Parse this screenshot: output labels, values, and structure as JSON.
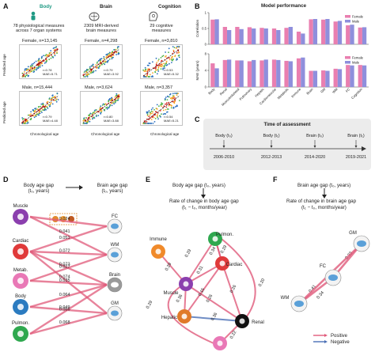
{
  "panels": {
    "A": "A",
    "B": "B",
    "C": "C",
    "D": "D",
    "E": "E",
    "F": "F"
  },
  "panelA": {
    "columns": [
      {
        "title": "Body",
        "desc_line1": "78 physiological measures",
        "desc_line2": "across 7 organ systems",
        "female": "Female, n=13,145",
        "male": "Male, n=15,444",
        "female_stats": {
          "r": "r=0.78",
          "mae": "MAE=5.71"
        },
        "male_stats": {
          "r": "r=0.79",
          "mae": "MAE=4.48"
        }
      },
      {
        "title": "Brain",
        "desc_line1": "2309 MRI-derived",
        "desc_line2": "brain measures",
        "female": "Female, n=4,298",
        "male": "Male, n=3,624",
        "female_stats": {
          "r": "r=0.79",
          "mae": "MAE=3.92"
        },
        "male_stats": {
          "r": "r=0.80",
          "mae": "MAE=3.88"
        }
      },
      {
        "title": "Cognition",
        "desc_line1": "29 cognitive",
        "desc_line2": "measures",
        "female": "Female, n=3,810",
        "male": "Male, n=3,357",
        "female_stats": {
          "r": "r=0.53",
          "mae": "MAE=5.32"
        },
        "male_stats": {
          "r": "r=0.54",
          "mae": "MAE=5.21"
        }
      }
    ],
    "ylabel": "Predicted age",
    "xlabel": "Chronological age"
  },
  "chart_data": [
    {
      "type": "bar",
      "title": "Model performance",
      "ylabel": "Correlation",
      "ylim": [
        0,
        1
      ],
      "categories": [
        "Body",
        "Renal",
        "Musculoskeletal",
        "Pulmonary",
        "Hepatic",
        "Cardiovascular",
        "Metabolic",
        "Immune",
        "Brain",
        "GM",
        "WM",
        "FC",
        "Cognition"
      ],
      "series": [
        {
          "name": "Female",
          "color": "#e97fb0",
          "values": [
            0.78,
            0.55,
            0.55,
            0.54,
            0.52,
            0.5,
            0.52,
            0.4,
            0.79,
            0.78,
            0.72,
            0.6,
            0.53
          ]
        },
        {
          "name": "Male",
          "color": "#8f8fdc",
          "values": [
            0.79,
            0.45,
            0.48,
            0.5,
            0.5,
            0.45,
            0.55,
            0.34,
            0.8,
            0.8,
            0.74,
            0.62,
            0.54
          ]
        }
      ],
      "legend": "top-right"
    },
    {
      "type": "bar",
      "ylabel": "MAE (years)",
      "ylim": [
        0,
        8
      ],
      "categories": [
        "Body",
        "Renal",
        "Musculoskeletal",
        "Pulmonary",
        "Hepatic",
        "Cardiovascular",
        "Metabolic",
        "Immune",
        "Brain",
        "GM",
        "WM",
        "FC",
        "Cognition"
      ],
      "series": [
        {
          "name": "Female",
          "color": "#e97fb0",
          "values": [
            5.7,
            6.5,
            6.4,
            6.2,
            6.4,
            6.6,
            6.3,
            6.9,
            3.9,
            4.0,
            4.4,
            5.3,
            5.3
          ]
        },
        {
          "name": "Male",
          "color": "#8f8fdc",
          "values": [
            4.5,
            6.6,
            6.4,
            6.5,
            6.6,
            6.5,
            6.2,
            7.1,
            3.9,
            3.9,
            4.3,
            5.2,
            5.2
          ]
        }
      ],
      "legend": "top-right"
    }
  ],
  "panelB_ticks": {
    "corr": [
      "0",
      "0.5",
      "1"
    ],
    "mae": [
      "0",
      "4",
      "8"
    ]
  },
  "panelC": {
    "title": "Time of assessment",
    "events": [
      {
        "label": "Body (t₀)",
        "date": "2006-2010"
      },
      {
        "label": "Body (t₁)",
        "date": "2012-2013"
      },
      {
        "label": "Brain (t₀)",
        "date": "2014-2020"
      },
      {
        "label": "Brain (t₁)",
        "date": "2019-2021"
      }
    ]
  },
  "panelD": {
    "left_title_1": "Body age gap",
    "left_title_2": "(t₀, years)",
    "right_title_1": "Brain age gap",
    "right_title_2": "(t₀, years)",
    "sources": [
      "Muscle",
      "Cardiac",
      "Metab.",
      "Body",
      "Pulmon."
    ],
    "targets": [
      "FC",
      "WM",
      "Brain",
      "GM"
    ],
    "values": [
      "0.024",
      "0.041",
      "0.051",
      "0.072",
      "0.073",
      "0.074",
      "0.027",
      "0.035",
      "0.064",
      "0.049",
      "0.068",
      "0.066"
    ]
  },
  "panelE": {
    "title_1": "Body age gap (t₀, years)",
    "title_2": "Rate of change in body age gap",
    "title_3": "(t₁ − t₀, months/year)",
    "nodes": [
      "Immune",
      "Pulmon.",
      "Cardiac",
      "Muscle",
      "Hepatic",
      "Renal",
      "Metab."
    ],
    "values": [
      "0.29",
      "0.29",
      "0.31",
      "0.34",
      "0.26",
      "0.36",
      "0.36",
      "0.26",
      "0.22",
      "0.20",
      "0.15",
      "0.29",
      "0.29"
    ]
  },
  "panelF": {
    "title_1": "Brain age gap (t₀, years)",
    "title_2": "Rate of change in brain age gap",
    "title_3": "(t₁ − t₀, months/year)",
    "nodes": [
      "GM",
      "FC",
      "WM"
    ],
    "values": [
      "0.33",
      "0.41",
      "0.34"
    ],
    "legend": [
      {
        "label": "Positive",
        "color": "#e05a7a"
      },
      {
        "label": "Negative",
        "color": "#4a6fb5"
      }
    ]
  }
}
